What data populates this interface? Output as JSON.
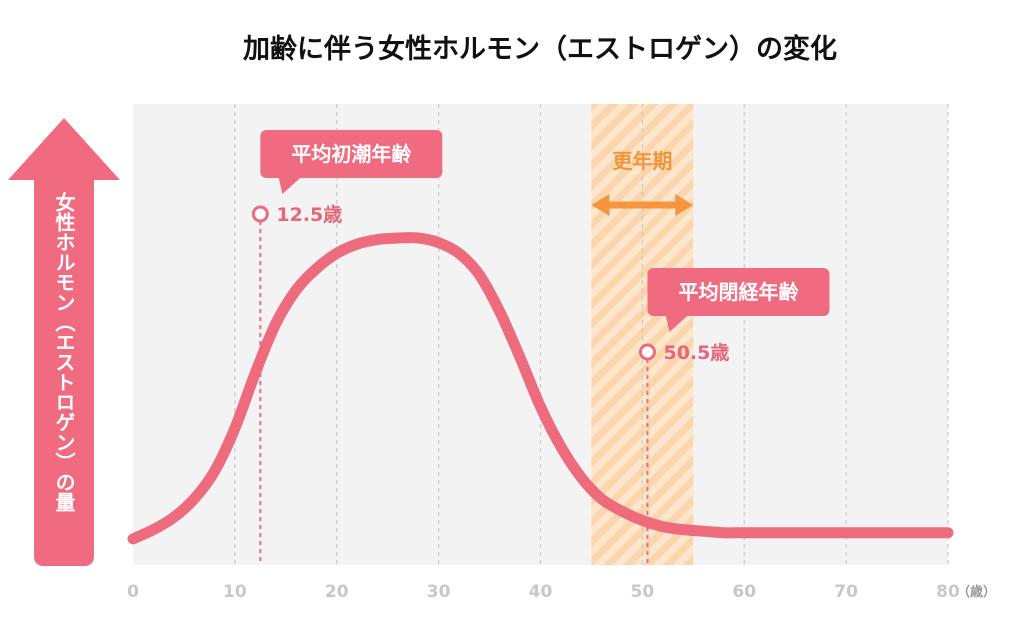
{
  "colors": {
    "accent": "#f06a80",
    "curve": "#ee6a7d",
    "period": "#f5963f",
    "plot_bg": "#f3f3f3",
    "tick": "#c8c8c8"
  },
  "chart_data": {
    "type": "line",
    "title": "加齢に伴う女性ホルモン（エストロゲン）の変化",
    "ylabel": "女性ホルモン（エストロゲン）の量",
    "xunit": "（歳）",
    "xlim": [
      0,
      80
    ],
    "ylim": [
      0,
      1
    ],
    "grid": true,
    "x_ticks": [
      0,
      10,
      20,
      30,
      40,
      50,
      60,
      70,
      80
    ],
    "x_tick_labels": [
      "0",
      "10",
      "20",
      "30",
      "40",
      "50",
      "60",
      "70",
      "80"
    ],
    "series": [
      {
        "x": [
          0,
          2,
          4,
          6,
          8,
          10,
          12,
          14,
          16,
          18,
          20,
          22,
          24,
          26,
          28,
          30,
          32,
          34,
          36,
          38,
          40,
          42,
          44,
          46,
          48,
          50,
          52,
          54,
          56,
          58,
          60,
          65,
          70,
          75,
          80
        ],
        "values": [
          0.02,
          0.05,
          0.09,
          0.15,
          0.24,
          0.38,
          0.56,
          0.72,
          0.83,
          0.9,
          0.95,
          0.98,
          0.995,
          1.0,
          1.0,
          0.985,
          0.95,
          0.88,
          0.76,
          0.61,
          0.45,
          0.32,
          0.22,
          0.15,
          0.11,
          0.08,
          0.06,
          0.05,
          0.045,
          0.04,
          0.04,
          0.04,
          0.04,
          0.04,
          0.04
        ]
      }
    ],
    "markers": [
      {
        "label": "平均初潮年齢",
        "age": 12.5,
        "age_text": "12.5歳",
        "y": 0.52
      },
      {
        "label": "平均閉経年齢",
        "age": 50.5,
        "age_text": "50.5歳",
        "y": 0.06
      }
    ],
    "highlight_band": {
      "label": "更年期",
      "x": [
        45,
        55
      ]
    }
  }
}
